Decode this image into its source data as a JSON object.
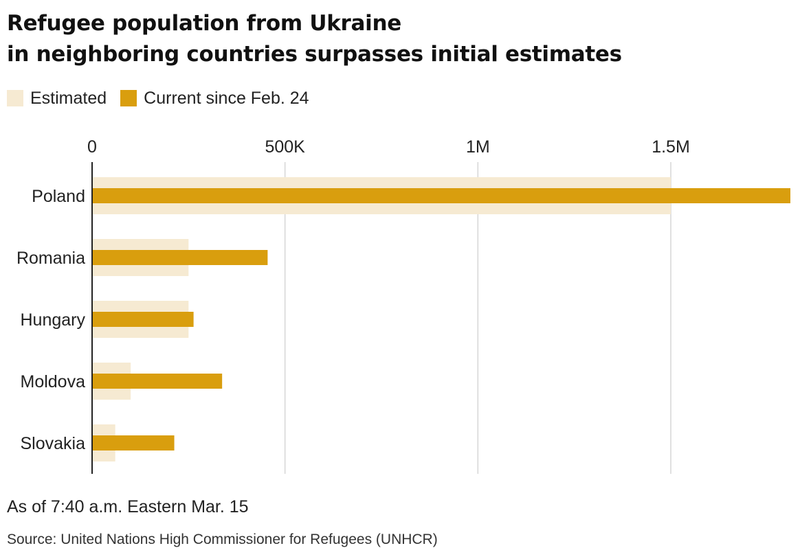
{
  "title_lines": [
    "Refugee population from Ukraine",
    "in neighboring countries surpasses initial estimates"
  ],
  "legend": [
    {
      "label": "Estimated",
      "color": "#f6ead2"
    },
    {
      "label": "Current since Feb. 24",
      "color": "#d99e0e"
    }
  ],
  "note": "As of 7:40 a.m. Eastern Mar. 15",
  "source": "Source: United Nations High Commissioner for Refugees (UNHCR)",
  "chart_data": {
    "type": "bar",
    "orientation": "horizontal",
    "categories": [
      "Poland",
      "Romania",
      "Hungary",
      "Moldova",
      "Slovakia"
    ],
    "series": [
      {
        "name": "Estimated",
        "color": "#f6ead2",
        "values": [
          1500000,
          250000,
          250000,
          100000,
          60000
        ]
      },
      {
        "name": "Current since Feb. 24",
        "color": "#d99e0e",
        "values": [
          1810000,
          455000,
          263000,
          337000,
          213000
        ]
      }
    ],
    "xlim": [
      0,
      1810000
    ],
    "xticks": [
      0,
      500000,
      1000000,
      1500000
    ],
    "xtick_labels": [
      "0",
      "500K",
      "1M",
      "1.5M"
    ],
    "grid": true,
    "gridline_color": "#d6d6d6",
    "axis_color": "#222222"
  }
}
